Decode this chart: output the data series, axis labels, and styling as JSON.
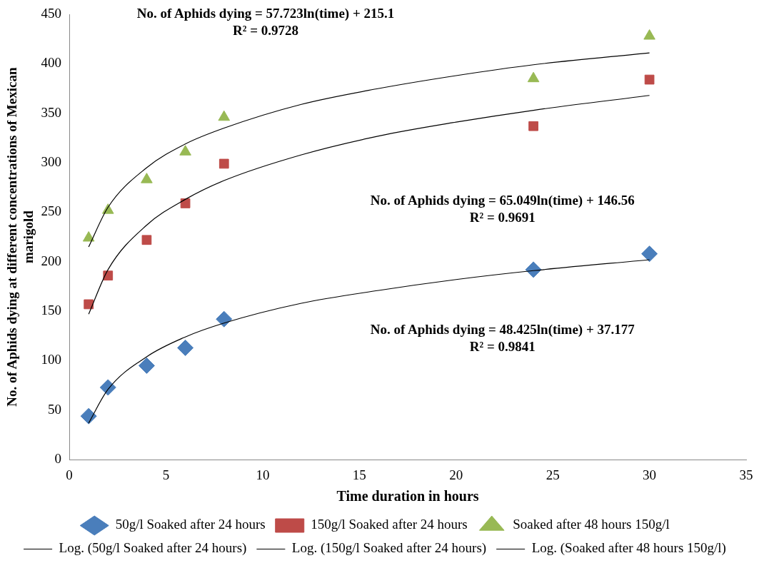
{
  "chart_data": {
    "type": "scatter",
    "xlabel": "Time duration in hours",
    "ylabel": "No. of Aphids dying at different concentrations of Mexican marigold",
    "xlim": [
      0,
      35
    ],
    "xticks": [
      0,
      5,
      10,
      15,
      20,
      25,
      30,
      35
    ],
    "ylim": [
      0,
      450
    ],
    "yticks": [
      0,
      50,
      100,
      150,
      200,
      250,
      300,
      350,
      400,
      450
    ],
    "grid": false,
    "legend": "bottom",
    "series": [
      {
        "name": "50g/l Soaked after 24 hours",
        "color": "#4a7ebb",
        "marker": "diamond",
        "x": [
          1,
          2,
          4,
          6,
          8,
          24,
          30
        ],
        "values": [
          44,
          73,
          95,
          113,
          142,
          192,
          208
        ]
      },
      {
        "name": "150g/l Soaked after 24 hours",
        "color": "#be4b48",
        "marker": "square",
        "x": [
          1,
          2,
          4,
          6,
          8,
          24,
          30
        ],
        "values": [
          157,
          186,
          222,
          259,
          299,
          337,
          384
        ]
      },
      {
        "name": "Soaked after 48 hours 150g/l",
        "color": "#98b954",
        "marker": "triangle",
        "x": [
          1,
          2,
          4,
          6,
          8,
          24,
          30
        ],
        "values": [
          224,
          252,
          283,
          311,
          346,
          385,
          428
        ]
      },
      {
        "name": "Log. (50g/l Soaked after 24 hours)",
        "type": "line",
        "color": "#000000",
        "marker": "none",
        "x": [
          1,
          2,
          4,
          6,
          8,
          12,
          16,
          20,
          24,
          30
        ],
        "values": [
          37,
          71,
          104,
          124,
          138,
          158,
          171,
          182,
          191,
          202
        ]
      },
      {
        "name": "Log. (150g/l Soaked after 24 hours)",
        "type": "line",
        "color": "#000000",
        "marker": "none",
        "x": [
          1,
          2,
          4,
          6,
          8,
          12,
          16,
          20,
          24,
          30
        ],
        "values": [
          147,
          192,
          237,
          263,
          282,
          308,
          327,
          341,
          353,
          368
        ]
      },
      {
        "name": "Log. (Soaked after 48 hours 150g/l)",
        "type": "line",
        "color": "#000000",
        "marker": "none",
        "x": [
          1,
          2,
          4,
          6,
          8,
          12,
          16,
          20,
          24,
          30
        ],
        "values": [
          215,
          255,
          295,
          319,
          335,
          359,
          375,
          388,
          399,
          411
        ]
      }
    ],
    "annotations": [
      "No. of Aphids dying = 57.723ln(time) + 215.1\nR² = 0.9728",
      "No. of Aphids dying = 65.049ln(time) + 146.56\nR² = 0.9691",
      "No. of Aphids dying = 48.425ln(time) + 37.177\nR² = 0.9841"
    ]
  }
}
